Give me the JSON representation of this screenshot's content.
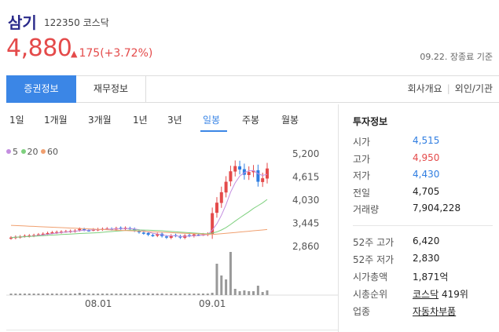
{
  "stock": {
    "name": "삼기",
    "code": "122350",
    "market": "코스닥",
    "price": "4,880",
    "change_arrow": "▲",
    "change": "175",
    "change_pct": "(+3.72%)",
    "as_of": "09.22. 장종료 기준"
  },
  "tabs": {
    "stock_info": "증권정보",
    "financial_info": "재무정보",
    "company_overview": "회사개요",
    "foreign_institution": "외인/기관"
  },
  "periods": [
    "1일",
    "1개월",
    "3개월",
    "1년",
    "3년",
    "일봉",
    "주봉",
    "월봉"
  ],
  "active_period": "일봉",
  "ma_legend": [
    {
      "label": "5",
      "color": "#c48ee0"
    },
    {
      "label": "20",
      "color": "#7ed07e"
    },
    {
      "label": "60",
      "color": "#f0a070"
    }
  ],
  "colors": {
    "up": "#e44a4a",
    "down": "#2f7de1",
    "accent": "#3b86e6"
  },
  "chart_data": {
    "type": "candlestick",
    "y_ticks": [
      "5,200",
      "4,615",
      "4,030",
      "3,445",
      "2,860"
    ],
    "x_ticks": [
      "08.01",
      "09.01"
    ],
    "ylim": [
      2600,
      5300
    ]
  },
  "investment_info": {
    "title": "투자정보",
    "rows": [
      {
        "label": "시가",
        "value": "4,515",
        "tone": "blue"
      },
      {
        "label": "고가",
        "value": "4,950",
        "tone": "red"
      },
      {
        "label": "저가",
        "value": "4,430",
        "tone": "blue"
      },
      {
        "label": "전일",
        "value": "4,705",
        "tone": ""
      },
      {
        "label": "거래량",
        "value": "7,904,228",
        "tone": ""
      }
    ],
    "rows2": [
      {
        "label": "52주 고가",
        "value": "6,420"
      },
      {
        "label": "52주 저가",
        "value": "2,830"
      },
      {
        "label": "시가총액",
        "value": "1,871억"
      }
    ],
    "rank_label": "시총순위",
    "rank_market": "코스닥",
    "rank_value": "419위",
    "industry_label": "업종",
    "industry_value": "자동차부품"
  }
}
